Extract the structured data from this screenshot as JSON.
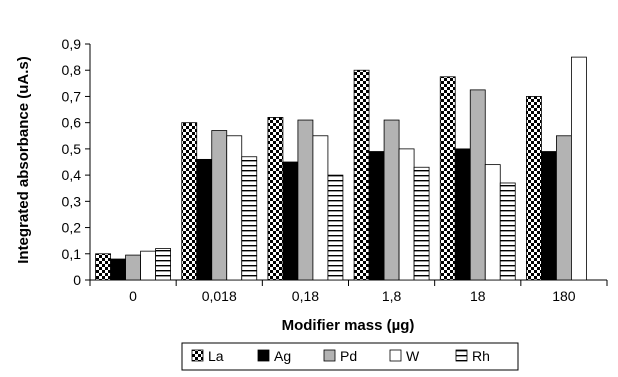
{
  "chart_data": {
    "type": "bar",
    "title": "",
    "xlabel": "Modifier mass (µg)",
    "ylabel": "Integrated absorbance (uA.s)",
    "ylim": [
      0,
      0.9
    ],
    "yticks": [
      "0",
      "0,1",
      "0,2",
      "0,3",
      "0,4",
      "0,5",
      "0,6",
      "0,7",
      "0,8",
      "0,9"
    ],
    "categories": [
      "0",
      "0,018",
      "0,18",
      "1,8",
      "18",
      "180"
    ],
    "series": [
      {
        "name": "La",
        "values": [
          0.1,
          0.6,
          0.62,
          0.8,
          0.775,
          0.7
        ],
        "pattern": "checker"
      },
      {
        "name": "Ag",
        "values": [
          0.08,
          0.46,
          0.45,
          0.49,
          0.5,
          0.49
        ],
        "pattern": "black"
      },
      {
        "name": "Pd",
        "values": [
          0.095,
          0.57,
          0.61,
          0.61,
          0.725,
          0.55
        ],
        "pattern": "gray"
      },
      {
        "name": "W",
        "values": [
          0.11,
          0.55,
          0.55,
          0.5,
          0.44,
          0.85
        ],
        "pattern": "white"
      },
      {
        "name": "Rh",
        "values": [
          0.12,
          0.47,
          0.4,
          0.43,
          0.37,
          0.0
        ],
        "pattern": "hlines"
      }
    ],
    "grid": false,
    "legend_position": "bottom",
    "colors": {
      "black": "#000000",
      "gray": "#b3b3b3",
      "white": "#ffffff"
    }
  }
}
